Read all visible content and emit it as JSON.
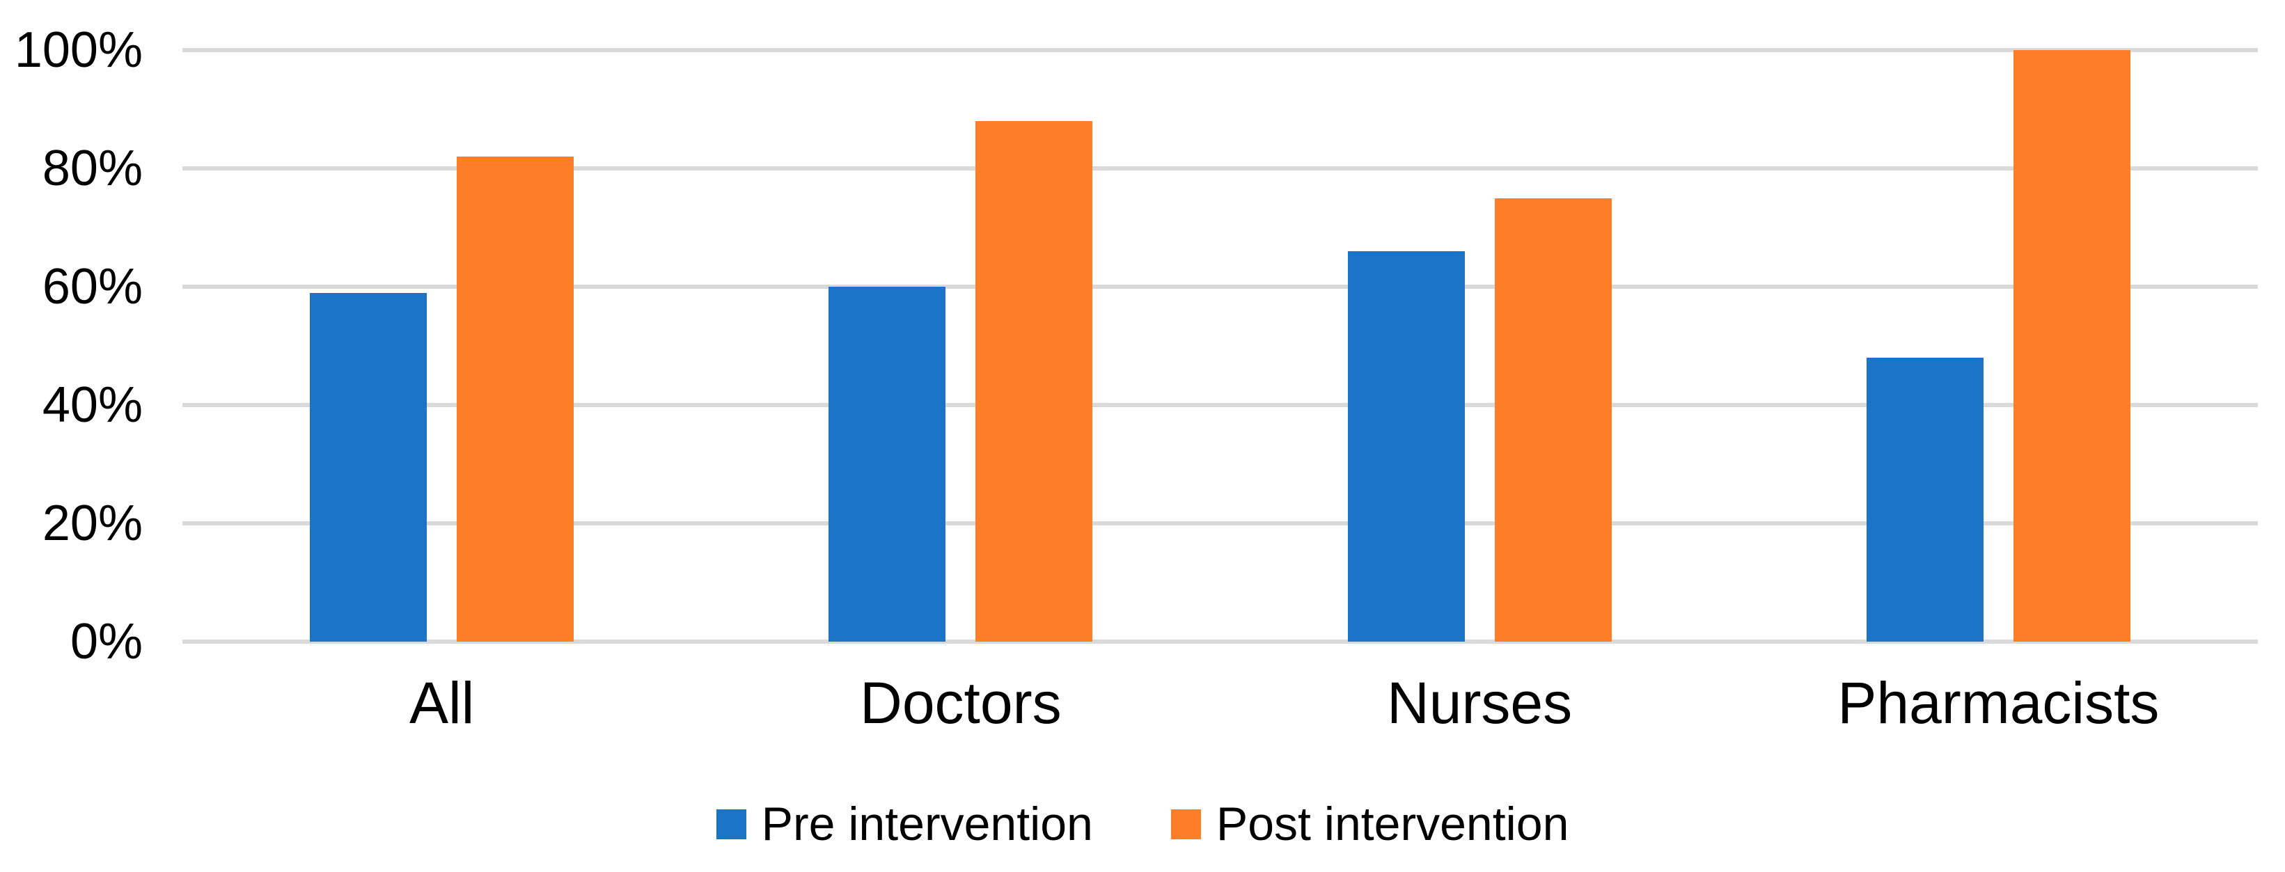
{
  "figure": {
    "background_color": "#FFFFFF",
    "title": ""
  },
  "chart_data": {
    "type": "bar",
    "title": "",
    "xlabel": "",
    "ylabel": "",
    "categories": [
      "All",
      "Doctors",
      "Nurses",
      "Pharmacists"
    ],
    "series": [
      {
        "name": "Pre intervention",
        "color": "#1B74C8",
        "values": [
          59,
          60,
          66,
          48
        ]
      },
      {
        "name": "Post intervention",
        "color": "#FD7E27",
        "values": [
          82,
          88,
          75,
          100
        ]
      }
    ],
    "y_axis": {
      "tick_labels": [
        "0%",
        "20%",
        "40%",
        "60%",
        "80%",
        "100%"
      ],
      "tick_values": [
        0,
        20,
        40,
        60,
        80,
        100
      ],
      "min": 0,
      "max": 100,
      "unit": "%"
    },
    "grid": true,
    "gridline_color": "#D9D9D9",
    "text_color": "#000000",
    "legend_position": "bottom-center"
  }
}
